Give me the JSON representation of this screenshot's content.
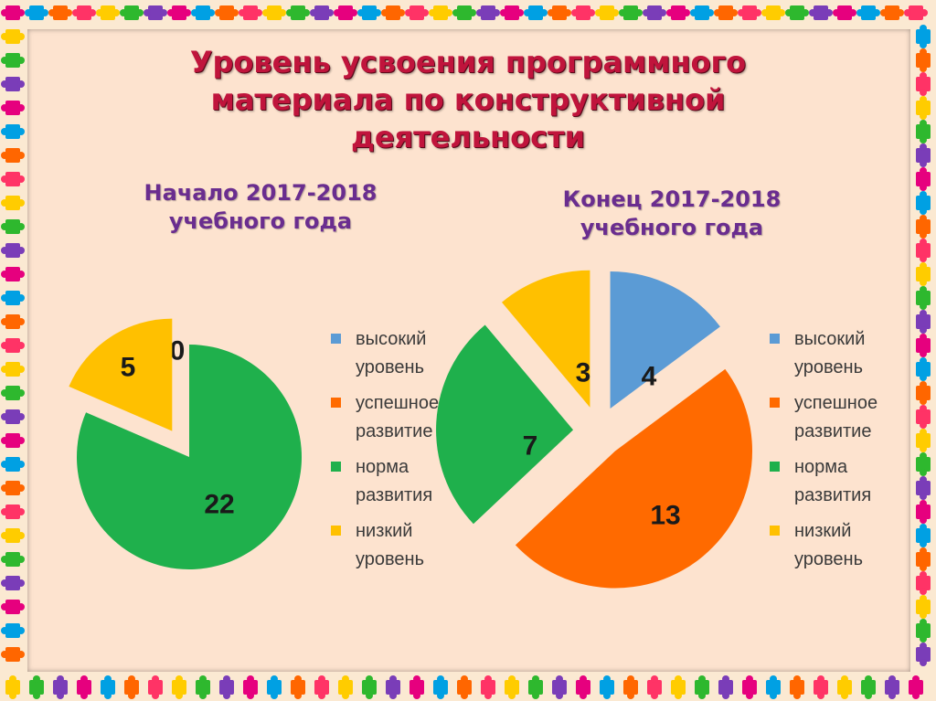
{
  "slide": {
    "title": "Уровень усвоения программного\nматериала по конструктивной\nдеятельности"
  },
  "chart_data": [
    {
      "type": "pie",
      "title": "Начало 2017-2018\nучебного года",
      "categories": [
        "высокий уровень",
        "успешное развитие",
        "норма развития",
        "низкий уровень"
      ],
      "values": [
        0,
        0,
        22,
        5
      ],
      "data_labels": [
        "0",
        "",
        "22",
        "5"
      ],
      "colors": [
        "#5b9bd5",
        "#ff6a00",
        "#1fb04c",
        "#ffc000"
      ],
      "legend": "right"
    },
    {
      "type": "pie",
      "title": "Конец 2017-2018\nучебного года",
      "categories": [
        "высокий уровень",
        "успешное развитие",
        "норма развития",
        "низкий уровень"
      ],
      "values": [
        4,
        13,
        7,
        3
      ],
      "data_labels": [
        "4",
        "13",
        "7",
        "3"
      ],
      "colors": [
        "#5b9bd5",
        "#ff6a00",
        "#1fb04c",
        "#ffc000"
      ],
      "legend": "right"
    }
  ],
  "legend": {
    "items": [
      {
        "label": "высокий\nуровень",
        "color": "#5b9bd5"
      },
      {
        "label": "успешное\nразвитие",
        "color": "#ff6a00"
      },
      {
        "label": "норма\nразвития",
        "color": "#1fb04c"
      },
      {
        "label": "низкий\nуровень",
        "color": "#ffc000"
      }
    ]
  },
  "frame": {
    "puzzle_colors": [
      "#e6007e",
      "#ffcc00",
      "#00a0e3",
      "#2eb82e",
      "#ff6600",
      "#7a3db8",
      "#ff3366"
    ]
  }
}
